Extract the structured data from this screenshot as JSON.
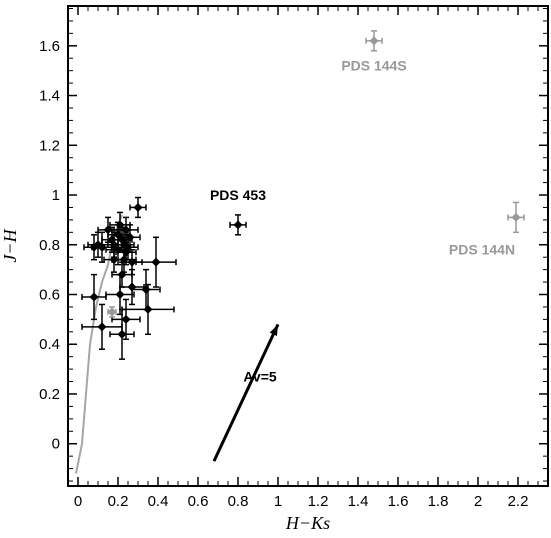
{
  "chart_data": {
    "type": "scatter",
    "xlabel": "H−Ks",
    "ylabel": "J−H",
    "xlim": [
      -0.05,
      2.35
    ],
    "ylim": [
      -0.17,
      1.76
    ],
    "x_ticks": [
      0,
      0.2,
      0.4,
      0.6,
      0.8,
      1,
      1.2,
      1.4,
      1.6,
      1.8,
      2,
      2.2
    ],
    "x_tick_labels": [
      "0",
      "0.2",
      "0.4",
      "0.6",
      "0.8",
      "1",
      "1.2",
      "1.4",
      "1.6",
      "1.8",
      "2",
      "2.2"
    ],
    "y_ticks": [
      0,
      0.2,
      0.4,
      0.6,
      0.8,
      1,
      1.2,
      1.4,
      1.6
    ],
    "y_tick_labels": [
      "0",
      "0.2",
      "0.4",
      "0.6",
      "0.8",
      "1",
      "1.2",
      "1.4",
      "1.6"
    ],
    "grid": false,
    "colors": {
      "black": "#000000",
      "gray": "#999999",
      "curve": "#a6a6a6"
    },
    "series": [
      {
        "color": "#000000",
        "points": [
          {
            "x": 0.08,
            "y": 0.79,
            "xerr": 0.05,
            "yerr": 0.05
          },
          {
            "x": 0.1,
            "y": 0.8,
            "xerr": 0.05,
            "yerr": 0.05
          },
          {
            "x": 0.12,
            "y": 0.79,
            "xerr": 0.05,
            "yerr": 0.06
          },
          {
            "x": 0.15,
            "y": 0.86,
            "xerr": 0.05,
            "yerr": 0.05
          },
          {
            "x": 0.17,
            "y": 0.82,
            "xerr": 0.05,
            "yerr": 0.05
          },
          {
            "x": 0.18,
            "y": 0.8,
            "xerr": 0.06,
            "yerr": 0.05
          },
          {
            "x": 0.2,
            "y": 0.84,
            "xerr": 0.05,
            "yerr": 0.05
          },
          {
            "x": 0.2,
            "y": 0.78,
            "xerr": 0.06,
            "yerr": 0.06
          },
          {
            "x": 0.21,
            "y": 0.88,
            "xerr": 0.05,
            "yerr": 0.05
          },
          {
            "x": 0.22,
            "y": 0.82,
            "xerr": 0.05,
            "yerr": 0.05
          },
          {
            "x": 0.23,
            "y": 0.8,
            "xerr": 0.05,
            "yerr": 0.06
          },
          {
            "x": 0.24,
            "y": 0.86,
            "xerr": 0.06,
            "yerr": 0.05
          },
          {
            "x": 0.25,
            "y": 0.79,
            "xerr": 0.05,
            "yerr": 0.05
          },
          {
            "x": 0.26,
            "y": 0.83,
            "xerr": 0.05,
            "yerr": 0.05
          },
          {
            "x": 0.24,
            "y": 0.77,
            "xerr": 0.05,
            "yerr": 0.05
          },
          {
            "x": 0.3,
            "y": 0.95,
            "xerr": 0.04,
            "yerr": 0.04
          },
          {
            "x": 0.18,
            "y": 0.74,
            "xerr": 0.05,
            "yerr": 0.05
          },
          {
            "x": 0.23,
            "y": 0.74,
            "xerr": 0.06,
            "yerr": 0.05
          },
          {
            "x": 0.27,
            "y": 0.73,
            "xerr": 0.05,
            "yerr": 0.05
          },
          {
            "x": 0.22,
            "y": 0.68,
            "xerr": 0.05,
            "yerr": 0.05
          },
          {
            "x": 0.39,
            "y": 0.73,
            "xerr": 0.1,
            "yerr": 0.1
          },
          {
            "x": 0.08,
            "y": 0.59,
            "xerr": 0.06,
            "yerr": 0.09
          },
          {
            "x": 0.21,
            "y": 0.6,
            "xerr": 0.07,
            "yerr": 0.08
          },
          {
            "x": 0.27,
            "y": 0.63,
            "xerr": 0.06,
            "yerr": 0.07
          },
          {
            "x": 0.34,
            "y": 0.62,
            "xerr": 0.07,
            "yerr": 0.08
          },
          {
            "x": 0.24,
            "y": 0.5,
            "xerr": 0.07,
            "yerr": 0.08
          },
          {
            "x": 0.12,
            "y": 0.47,
            "xerr": 0.1,
            "yerr": 0.09
          },
          {
            "x": 0.22,
            "y": 0.44,
            "xerr": 0.06,
            "yerr": 0.1
          },
          {
            "x": 0.35,
            "y": 0.54,
            "xerr": 0.13,
            "yerr": 0.1
          },
          {
            "x": 0.8,
            "y": 0.88,
            "xerr": 0.04,
            "yerr": 0.04
          }
        ]
      },
      {
        "color": "#999999",
        "points": [
          {
            "x": 1.48,
            "y": 1.62,
            "xerr": 0.04,
            "yerr": 0.04
          },
          {
            "x": 2.19,
            "y": 0.91,
            "xerr": 0.04,
            "yerr": 0.06
          },
          {
            "x": 0.17,
            "y": 0.53,
            "xerr": 0.02,
            "yerr": 0.02
          }
        ]
      }
    ],
    "curve": {
      "color": "#a6a6a6",
      "points": [
        [
          -0.01,
          -0.12
        ],
        [
          0.02,
          0.0
        ],
        [
          0.04,
          0.2
        ],
        [
          0.06,
          0.4
        ],
        [
          0.09,
          0.55
        ],
        [
          0.12,
          0.65
        ],
        [
          0.15,
          0.72
        ],
        [
          0.17,
          0.8
        ],
        [
          0.2,
          0.88
        ],
        [
          0.22,
          0.92
        ]
      ]
    },
    "reddening_vector": {
      "x0": 0.68,
      "y0": -0.07,
      "x1": 1.0,
      "y1": 0.48
    },
    "annotations": [
      {
        "text": "PDS 453",
        "x": 0.8,
        "y": 0.98,
        "color": "#000000"
      },
      {
        "text": "PDS 144S",
        "x": 1.48,
        "y": 1.5,
        "color": "#999999"
      },
      {
        "text": "PDS 144N",
        "x": 2.02,
        "y": 0.76,
        "color": "#999999"
      },
      {
        "text": "Av=5",
        "x": 0.91,
        "y": 0.25,
        "color": "#000000"
      }
    ]
  }
}
